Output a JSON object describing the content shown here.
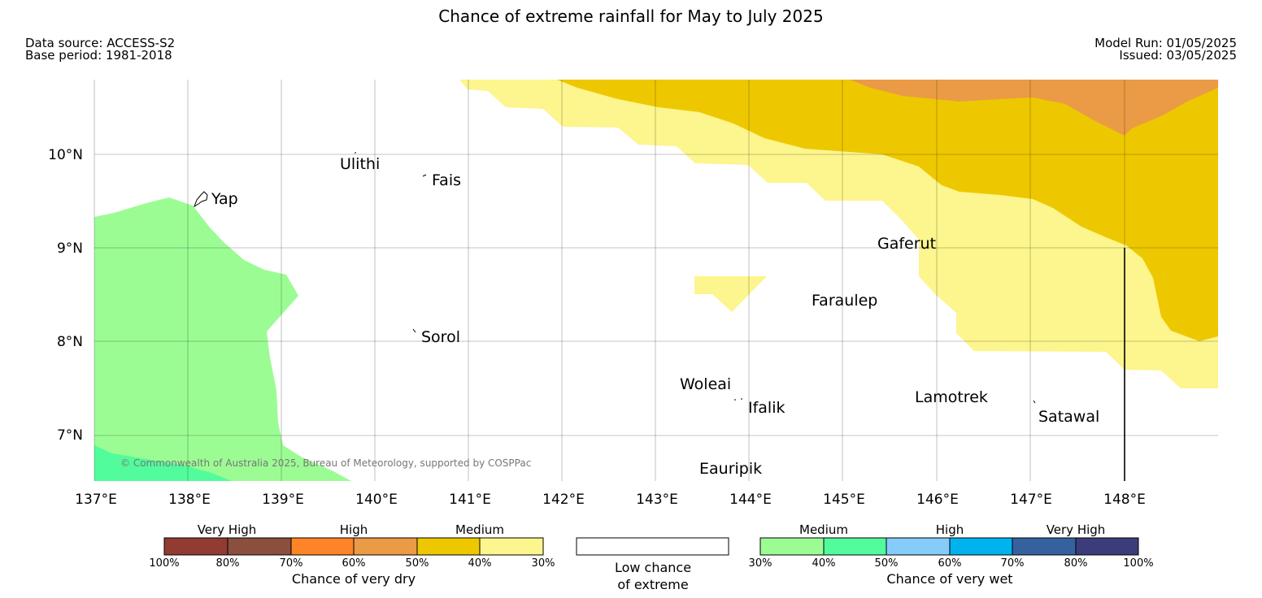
{
  "header": {
    "title": "Chance of extreme rainfall for May to July 2025",
    "data_source": "Data source: ACCESS-S2",
    "base_period": "Base period: 1981-2018",
    "model_run": "Model Run: 01/05/2025",
    "issued": "Issued: 03/05/2025"
  },
  "map": {
    "lon_labels": [
      "137°E",
      "138°E",
      "139°E",
      "140°E",
      "141°E",
      "142°E",
      "143°E",
      "144°E",
      "145°E",
      "146°E",
      "147°E",
      "148°E"
    ],
    "lat_labels": [
      "10°N",
      "9°N",
      "8°N",
      "7°N"
    ],
    "places": [
      "Ulithi",
      "Fais",
      "Yap",
      "Gaferut",
      "Faraulep",
      "Sorol",
      "Woleai",
      "Ifalik",
      "Lamotrek",
      "Satawal",
      "Eauripik"
    ],
    "copyright": "© Commonwealth of Australia 2025, Bureau of Meteorology, supported by COSPPac",
    "colors": {
      "dry_medium_40_50": "#edc800",
      "dry_medium_30_40": "#fdf58d",
      "dry_high_50_60": "#eb9b45",
      "wet_medium_30_40": "#9cfc94",
      "wet_medium_40_50": "#52fc9c"
    }
  },
  "legend": {
    "dry": {
      "categories": [
        "Very High",
        "High",
        "Medium"
      ],
      "ticks": [
        "100%",
        "80%",
        "70%",
        "60%",
        "50%",
        "40%",
        "30%"
      ],
      "title": "Chance of very dry",
      "colors": [
        "#913b33",
        "#8a4f3d",
        "#ff8427",
        "#eb9b45",
        "#edc800",
        "#fdf58d"
      ]
    },
    "low": {
      "line1": "Low chance",
      "line2": "of extreme"
    },
    "wet": {
      "categories": [
        "Medium",
        "High",
        "Very High"
      ],
      "ticks": [
        "30%",
        "40%",
        "50%",
        "60%",
        "70%",
        "80%",
        "100%"
      ],
      "title": "Chance of very wet",
      "colors": [
        "#9cfc94",
        "#52fc9c",
        "#86ccfa",
        "#00b3ef",
        "#35629f",
        "#3d3c7a"
      ]
    }
  }
}
